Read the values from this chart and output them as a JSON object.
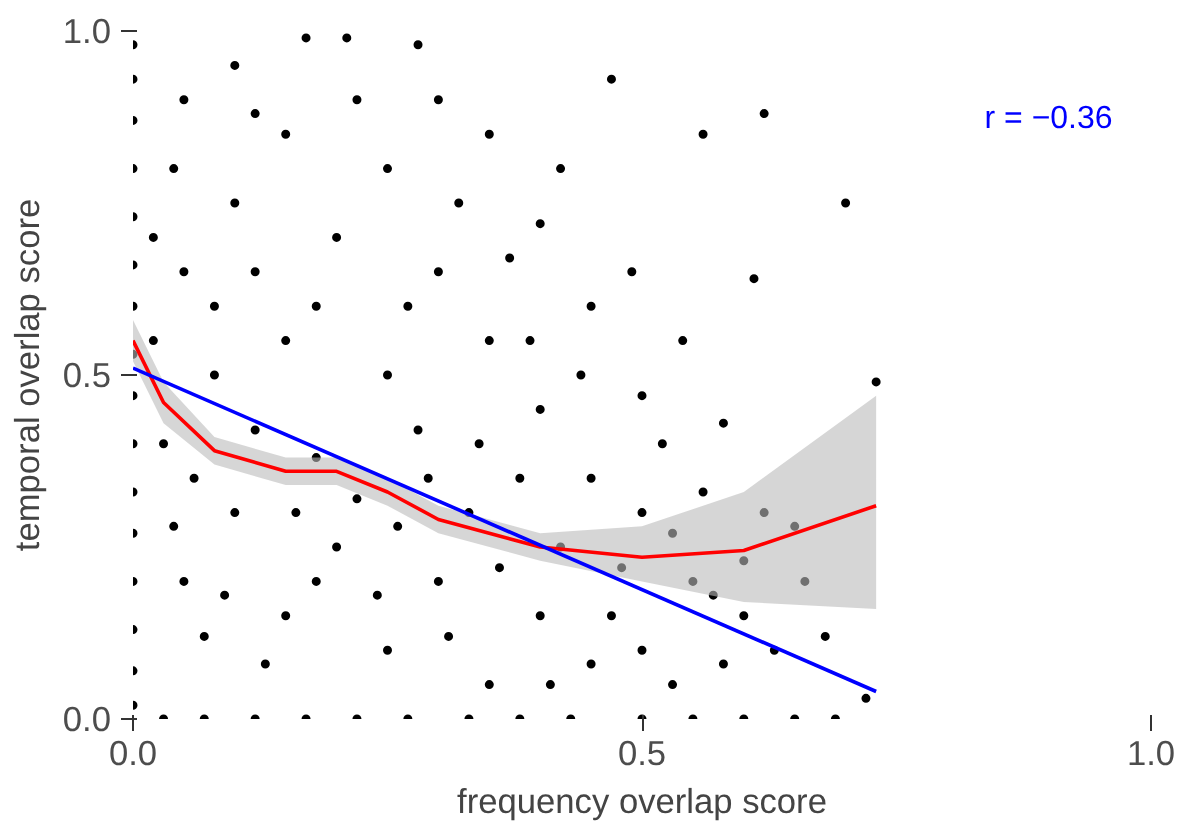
{
  "chart_data": {
    "type": "scatter",
    "xlabel": "frequency overlap score",
    "ylabel": "temporal overlap score",
    "xlim": [
      0,
      1.0
    ],
    "ylim": [
      0,
      1.0
    ],
    "xticks": [
      {
        "value": 0,
        "label": "0.0"
      },
      0.5,
      {
        "value": 1,
        "label": "1.0"
      }
    ],
    "yticks": [
      {
        "value": 0,
        "label": "0.0"
      },
      0.5,
      {
        "value": 1,
        "label": "1.0"
      }
    ],
    "grid": false,
    "annotations": [
      "r =  −0.36"
    ],
    "series": [
      {
        "marker": "circle",
        "color": "#000000",
        "x": [
          0,
          0,
          0,
          0,
          0,
          0,
          0,
          0,
          0,
          0,
          0,
          0,
          0,
          0,
          0,
          0,
          0.03,
          0.07,
          0.12,
          0.17,
          0.22,
          0.27,
          0.33,
          0.38,
          0.43,
          0.5,
          0.55,
          0.6,
          0.65,
          0.69,
          0.17,
          0.21,
          0.28,
          0.47,
          0.7,
          0.62,
          0.56,
          0.61,
          0.73,
          0.65,
          0.72,
          0.54,
          0.5,
          0.58,
          0.45,
          0.4,
          0.35,
          0.3,
          0.25,
          0.1,
          0.05,
          0.15,
          0.2,
          0.1,
          0.05,
          0.3,
          0.35,
          0.25,
          0.15,
          0.08,
          0.4,
          0.45,
          0.5,
          0.55,
          0.6,
          0.5,
          0.4,
          0.3,
          0.2,
          0.1,
          0.05,
          0.15,
          0.25,
          0.35,
          0.45,
          0.03,
          0.06,
          0.12,
          0.18,
          0.22,
          0.28,
          0.33,
          0.38,
          0.42,
          0.48,
          0.52,
          0.56,
          0.62,
          0.02,
          0.04,
          0.08,
          0.12,
          0.18,
          0.22,
          0.27,
          0.32,
          0.37,
          0.42,
          0.12,
          0.07,
          0.13,
          0.18,
          0.26,
          0.31,
          0.36,
          0.41,
          0.47,
          0.53,
          0.58,
          0.63,
          0.02,
          0.04,
          0.09,
          0.16,
          0.24,
          0.29,
          0.34,
          0.39,
          0.44,
          0.49,
          0.53,
          0.57,
          0.6,
          0.66,
          0.68
        ],
        "values": [
          0.98,
          0.93,
          0.87,
          0.8,
          0.73,
          0.66,
          0.6,
          0.53,
          0.47,
          0.4,
          0.33,
          0.27,
          0.2,
          0.13,
          0.07,
          0.02,
          0.0,
          0.0,
          0.0,
          0.0,
          0.0,
          0.0,
          0.0,
          0.0,
          0.0,
          0.0,
          0.0,
          0.0,
          0.0,
          0.0,
          0.99,
          0.99,
          0.98,
          0.93,
          0.75,
          0.88,
          0.85,
          0.64,
          0.49,
          0.28,
          0.03,
          0.55,
          0.47,
          0.43,
          0.6,
          0.72,
          0.85,
          0.9,
          0.8,
          0.95,
          0.9,
          0.85,
          0.7,
          0.75,
          0.65,
          0.65,
          0.55,
          0.5,
          0.55,
          0.5,
          0.45,
          0.35,
          0.3,
          0.2,
          0.15,
          0.1,
          0.15,
          0.2,
          0.25,
          0.3,
          0.2,
          0.15,
          0.1,
          0.05,
          0.08,
          0.4,
          0.35,
          0.42,
          0.38,
          0.32,
          0.42,
          0.3,
          0.35,
          0.25,
          0.22,
          0.4,
          0.33,
          0.3,
          0.7,
          0.8,
          0.6,
          0.65,
          0.6,
          0.9,
          0.6,
          0.75,
          0.67,
          0.8,
          0.88,
          0.12,
          0.08,
          0.2,
          0.28,
          0.12,
          0.22,
          0.05,
          0.15,
          0.05,
          0.08,
          0.1,
          0.55,
          0.28,
          0.18,
          0.3,
          0.18,
          0.35,
          0.4,
          0.55,
          0.5,
          0.65,
          0.27,
          0.18,
          0.23,
          0.2,
          0.12
        ]
      },
      {
        "type": "line",
        "color": "#ff0000",
        "x": [
          0,
          0.03,
          0.08,
          0.15,
          0.2,
          0.25,
          0.3,
          0.4,
          0.5,
          0.6,
          0.73
        ],
        "values": [
          0.55,
          0.46,
          0.39,
          0.36,
          0.36,
          0.33,
          0.29,
          0.25,
          0.235,
          0.245,
          0.31
        ],
        "lower": [
          0.52,
          0.43,
          0.37,
          0.34,
          0.34,
          0.31,
          0.27,
          0.23,
          0.2,
          0.17,
          0.16
        ],
        "upper": [
          0.58,
          0.49,
          0.41,
          0.38,
          0.38,
          0.35,
          0.31,
          0.27,
          0.28,
          0.33,
          0.47
        ]
      },
      {
        "type": "line",
        "color": "#0000ff",
        "x": [
          0,
          0.73
        ],
        "values": [
          0.51,
          0.04
        ]
      }
    ]
  }
}
